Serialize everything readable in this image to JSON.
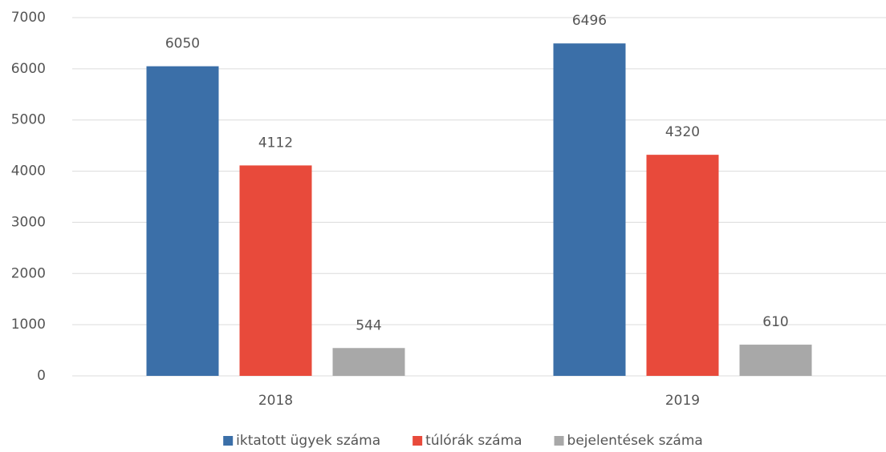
{
  "chart_data": {
    "type": "bar",
    "categories": [
      "2018",
      "2019"
    ],
    "series": [
      {
        "name": "iktatott ügyek száma",
        "color": "#3b6fa8",
        "values": [
          6050,
          6496
        ]
      },
      {
        "name": "túlórák száma",
        "color": "#e84a3b",
        "values": [
          4112,
          4320
        ]
      },
      {
        "name": "bejelentések száma",
        "color": "#a8a8a8",
        "values": [
          544,
          610
        ]
      }
    ],
    "ylim": [
      0,
      7000
    ],
    "yticks": [
      0,
      1000,
      2000,
      3000,
      4000,
      5000,
      6000,
      7000
    ],
    "grid": true,
    "legend": "bottom"
  }
}
